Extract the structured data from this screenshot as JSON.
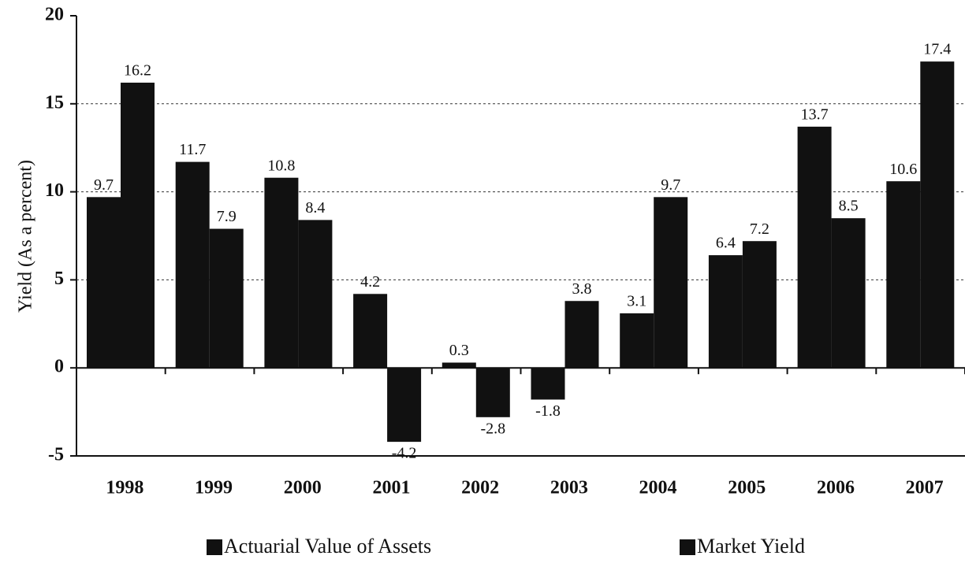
{
  "chart_data": {
    "type": "bar",
    "y_label": "Yield (As a percent)",
    "categories": [
      "1998",
      "1999",
      "2000",
      "2001",
      "2002",
      "2003",
      "2004",
      "2005",
      "2006",
      "2007"
    ],
    "series": [
      {
        "name": "Actuarial Value of Assets",
        "color": "#111111",
        "values": [
          9.7,
          11.7,
          10.8,
          4.2,
          0.3,
          -1.8,
          3.1,
          6.4,
          13.7,
          10.6
        ]
      },
      {
        "name": "Market Yield",
        "color": "#111111",
        "values": [
          16.2,
          7.9,
          8.4,
          -4.2,
          -2.8,
          3.8,
          9.7,
          7.2,
          8.5,
          17.4
        ]
      }
    ],
    "ylim": [
      -5,
      20
    ],
    "yticks": [
      -5,
      0,
      5,
      10,
      15,
      20
    ],
    "grid": true
  }
}
